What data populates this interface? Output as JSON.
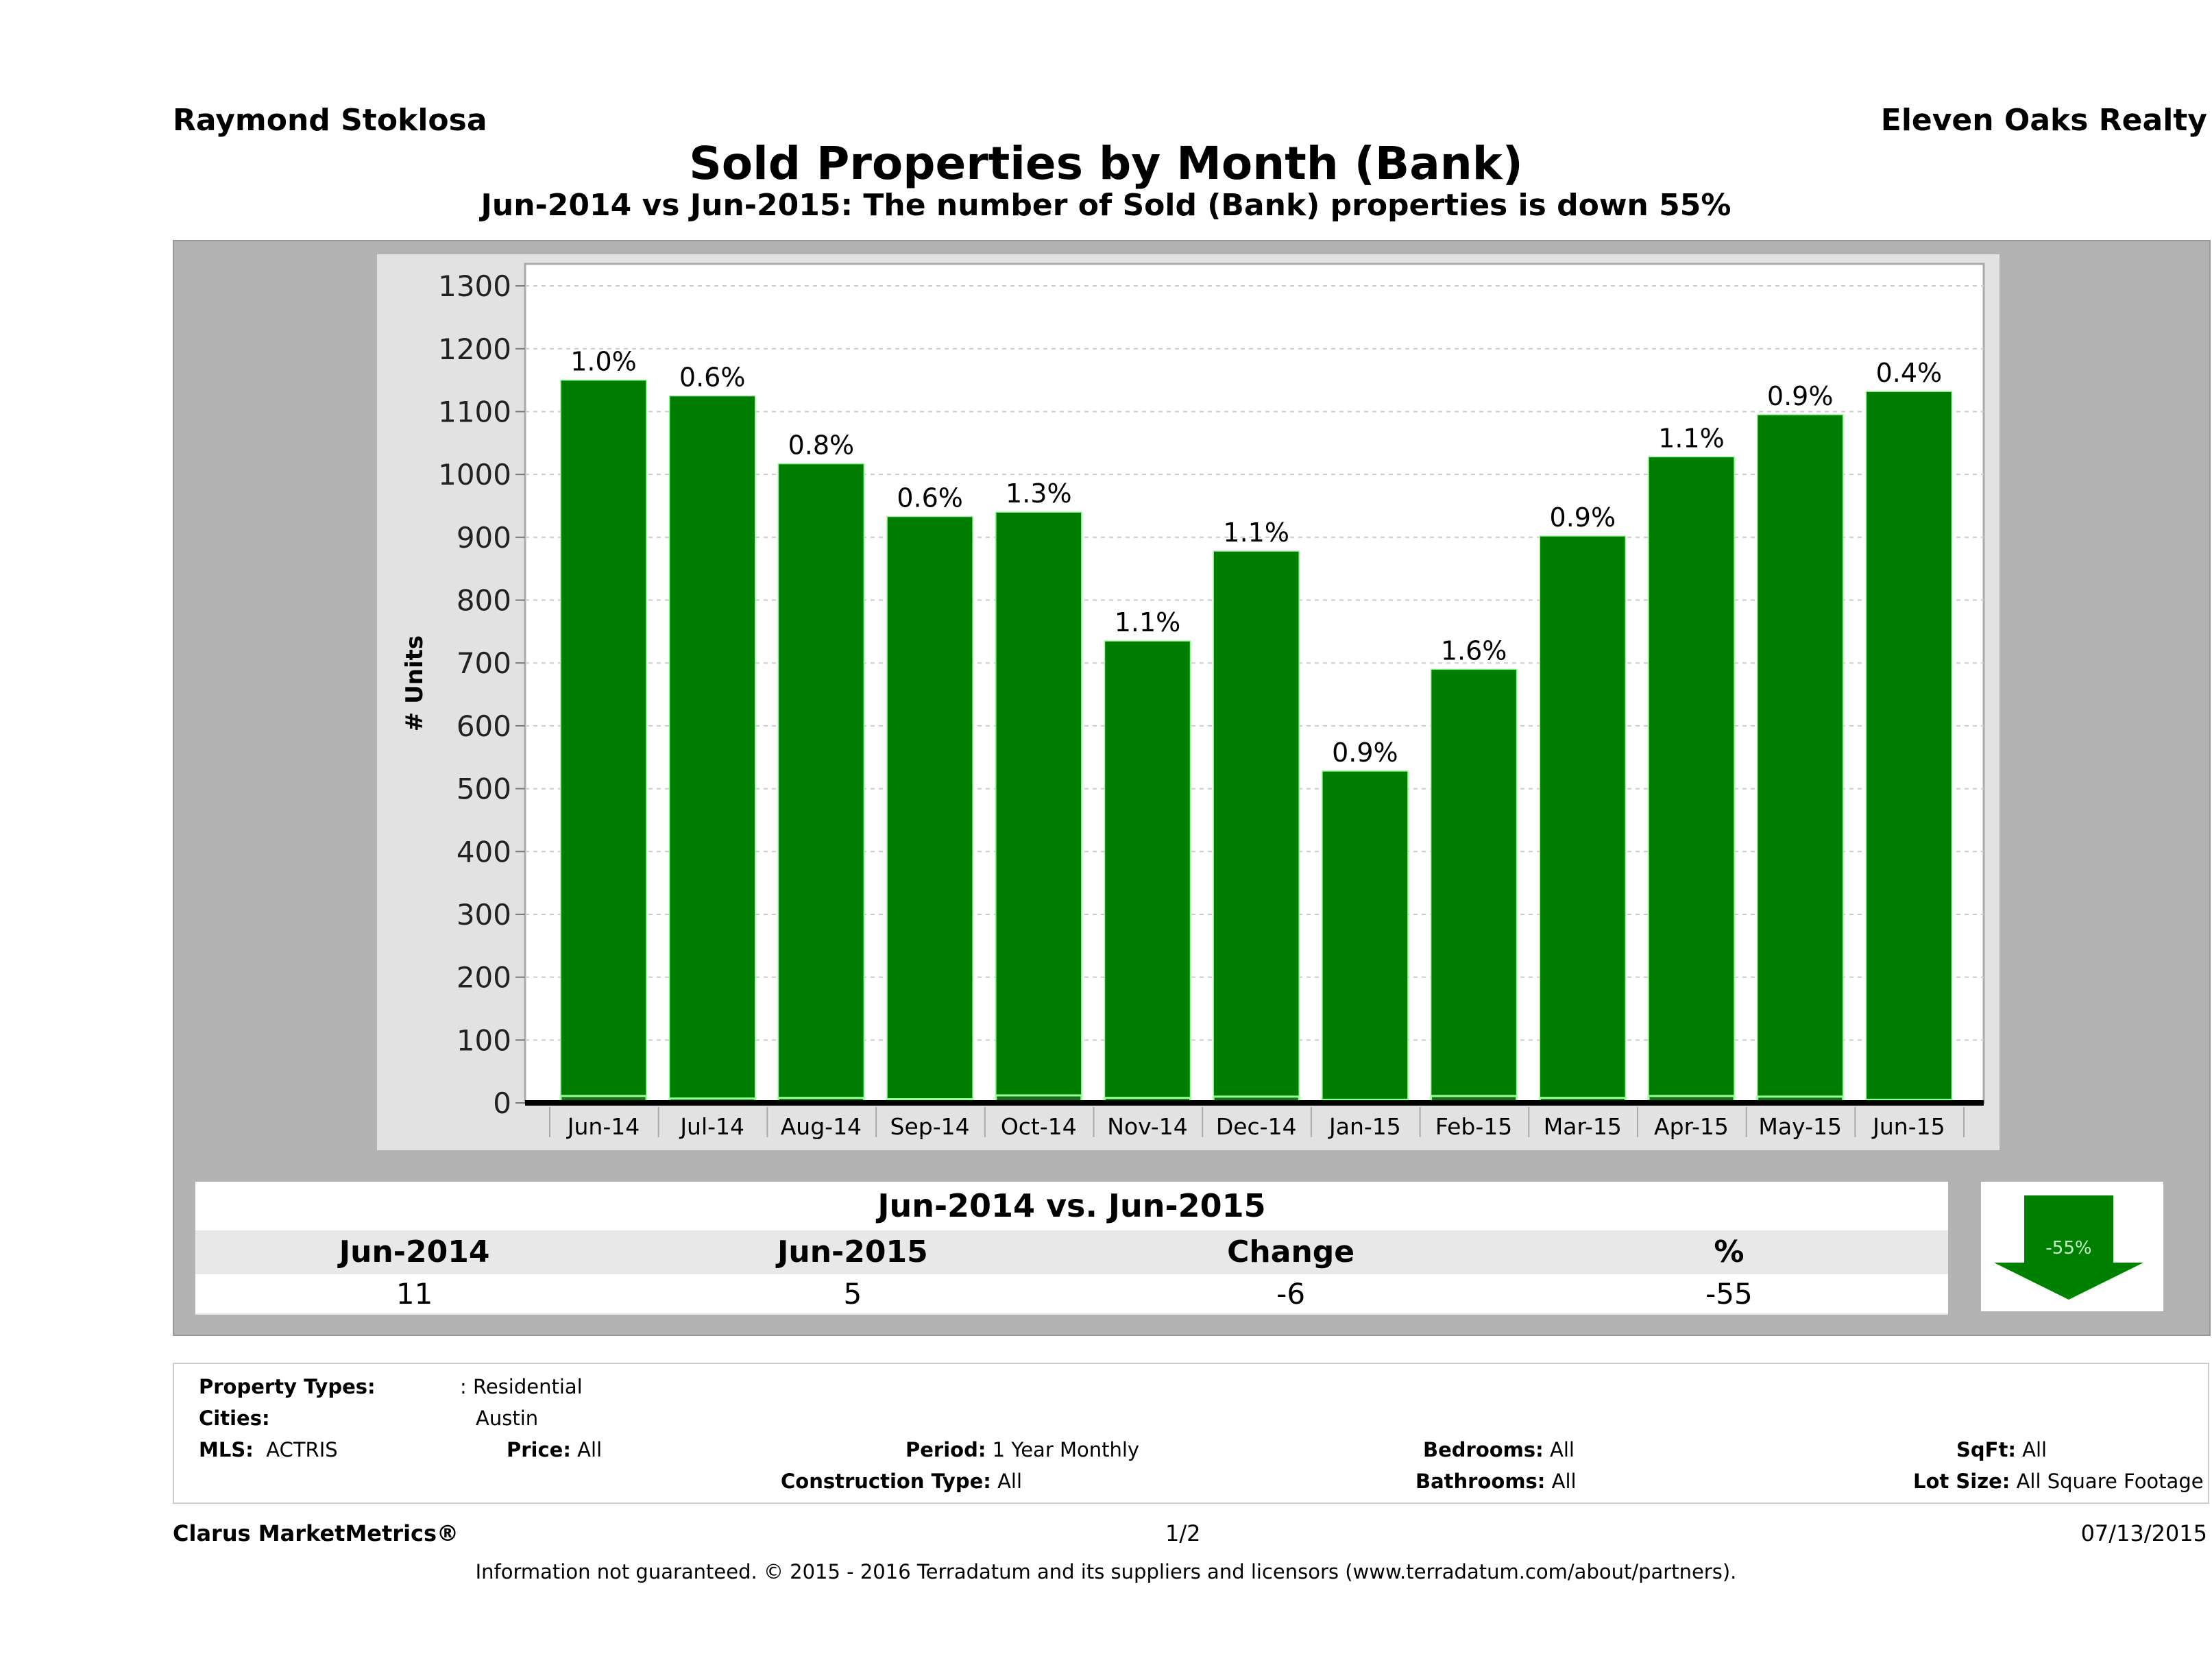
{
  "header": {
    "agent": "Raymond Stoklosa",
    "company": "Eleven Oaks Realty"
  },
  "title": "Sold Properties by Month (Bank)",
  "subtitle": "Jun-2014 vs Jun-2015: The number of Sold (Bank)  properties is down 55%",
  "chart_data": {
    "type": "bar",
    "ylabel": "# Units",
    "ylim": [
      0,
      1335
    ],
    "yticks": [
      0,
      100,
      200,
      300,
      400,
      500,
      600,
      700,
      800,
      900,
      1000,
      1100,
      1200,
      1300
    ],
    "grid": true,
    "categories": [
      "Jun-14",
      "Jul-14",
      "Aug-14",
      "Sep-14",
      "Oct-14",
      "Nov-14",
      "Dec-14",
      "Jan-15",
      "Feb-15",
      "Mar-15",
      "Apr-15",
      "May-15",
      "Jun-15"
    ],
    "series": [
      {
        "values": [
          1150,
          1125,
          1017,
          933,
          940,
          735,
          878,
          528,
          690,
          902,
          1028,
          1095,
          1132
        ],
        "color": "#007d00"
      },
      {
        "values": [
          11,
          7,
          8,
          6,
          12,
          8,
          10,
          5,
          11,
          8,
          11,
          10,
          5
        ],
        "color": "#1f6b1f"
      }
    ],
    "data_labels": [
      "1.0%",
      "0.6%",
      "0.8%",
      "0.6%",
      "1.3%",
      "1.1%",
      "1.1%",
      "0.9%",
      "1.6%",
      "0.9%",
      "1.1%",
      "0.9%",
      "0.4%"
    ]
  },
  "stats": {
    "title": "Jun-2014 vs. Jun-2015",
    "headers": [
      "Jun-2014",
      "Jun-2015",
      "Change",
      "%"
    ],
    "values": [
      "11",
      "5",
      "-6",
      "-55"
    ],
    "arrow_label": "-55%",
    "arrow_direction": "down",
    "arrow_color": "#008000"
  },
  "filters": {
    "property_types_label": "Property Types:",
    "property_types": ": Residential",
    "cities_label": "Cities:",
    "cities": "Austin",
    "mls_label": "MLS:",
    "mls": "ACTRIS",
    "price_label": "Price:",
    "price": "All",
    "period_label": "Period:",
    "period": "1 Year Monthly",
    "bedrooms_label": "Bedrooms:",
    "bedrooms": "All",
    "sqft_label": "SqFt:",
    "sqft": "All",
    "construction_label": "Construction Type:",
    "construction": "All",
    "bathrooms_label": "Bathrooms:",
    "bathrooms": "All",
    "lot_label": "Lot Size:",
    "lot": "All Square Footage"
  },
  "footer": {
    "brand": "Clarus MarketMetrics®",
    "page": "1/2",
    "date": "07/13/2015",
    "disclaimer": "Information not guaranteed. © 2015 - 2016 Terradatum and its suppliers and licensors (www.terradatum.com/about/partners)."
  }
}
